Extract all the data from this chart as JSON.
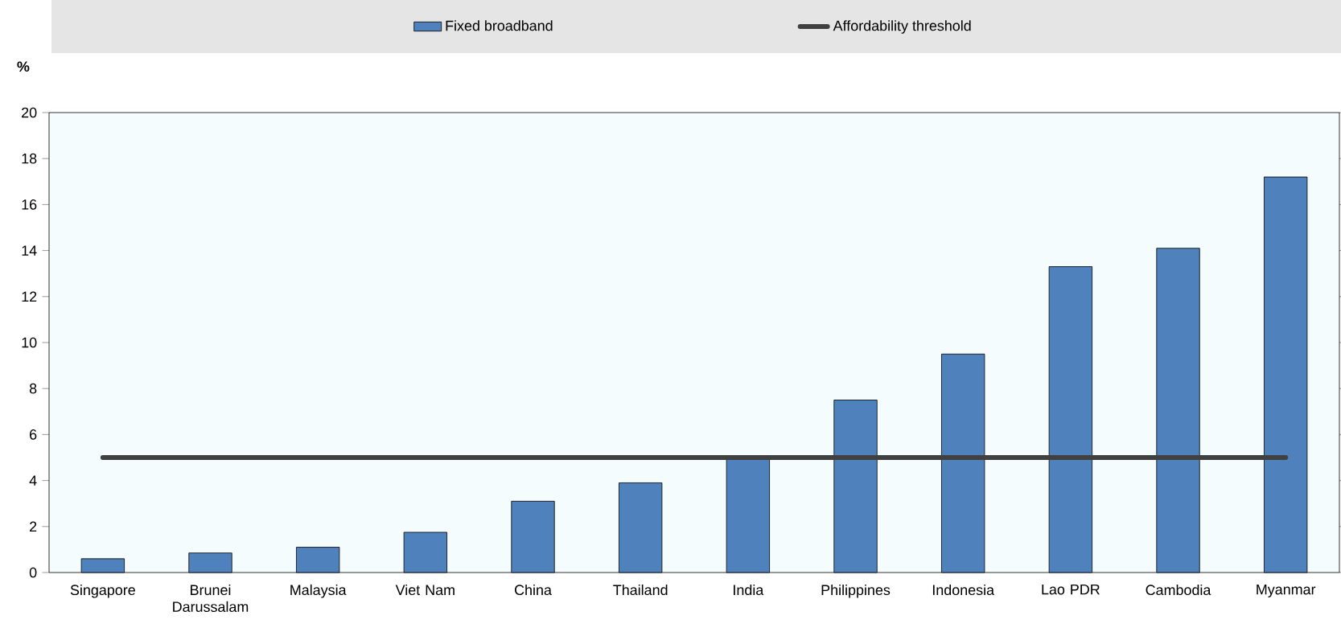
{
  "chart_data": {
    "type": "bar",
    "ylabel": "%",
    "categories": [
      "Singapore",
      "Brunei Darussalam",
      "Malaysia",
      "Viet Nam",
      "China",
      "Thailand",
      "India",
      "Philippines",
      "Indonesia",
      "Lao PDR",
      "Cambodia",
      "Myanmar"
    ],
    "series": [
      {
        "name": "Fixed broadband",
        "color": "#4f81bd",
        "values": [
          0.6,
          0.85,
          1.1,
          1.75,
          3.1,
          3.9,
          5.0,
          7.5,
          9.5,
          13.3,
          14.1,
          17.2
        ]
      },
      {
        "name": "Affordability threshold",
        "type": "line",
        "color": "#404040",
        "values": [
          5,
          5,
          5,
          5,
          5,
          5,
          5,
          5,
          5,
          5,
          5,
          5
        ]
      }
    ],
    "ylim": [
      0,
      20
    ],
    "yticks": [
      0,
      2,
      4,
      6,
      8,
      10,
      12,
      14,
      16,
      18,
      20
    ],
    "legend": "top"
  }
}
